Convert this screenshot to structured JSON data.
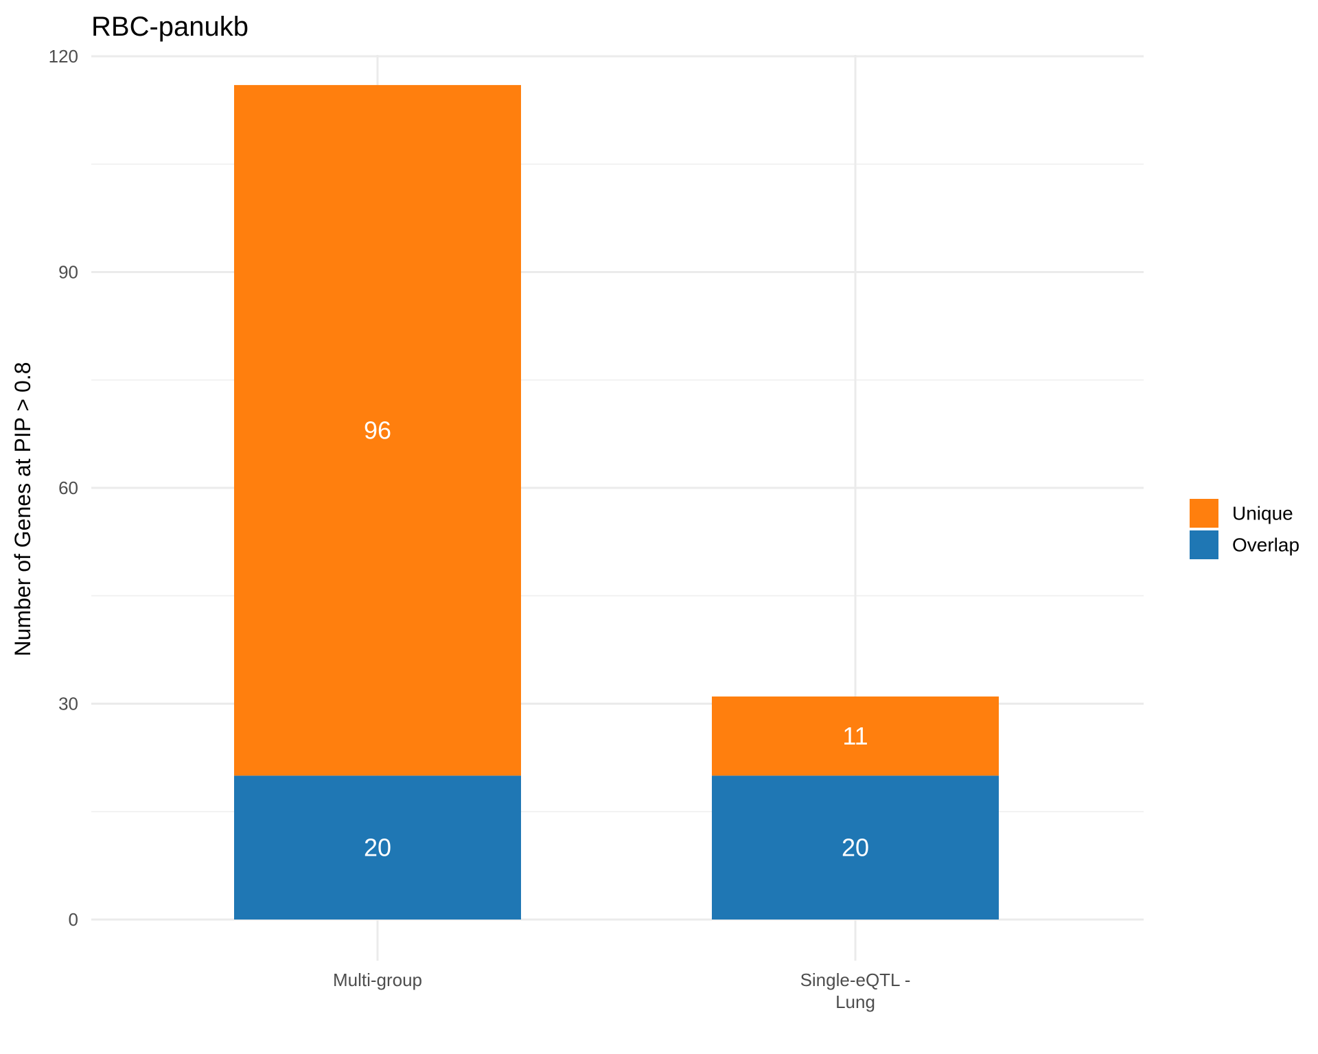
{
  "chart_data": {
    "type": "bar",
    "stacked": true,
    "title": "RBC-panukb",
    "xlabel": "",
    "ylabel": "Number of Genes at PIP > 0.8",
    "ylim": [
      0,
      120
    ],
    "yticks": [
      0,
      30,
      60,
      90,
      120
    ],
    "categories": [
      {
        "lines": [
          "Multi-group"
        ]
      },
      {
        "lines": [
          "Single-eQTL -",
          "Lung"
        ]
      }
    ],
    "series": [
      {
        "name": "Overlap",
        "color": "#1f77b4",
        "values": [
          20,
          20
        ]
      },
      {
        "name": "Unique",
        "color": "#ff7f0e",
        "values": [
          96,
          11
        ]
      }
    ],
    "legend": {
      "position": "right",
      "order": [
        "Unique",
        "Overlap"
      ]
    },
    "grid": true
  }
}
